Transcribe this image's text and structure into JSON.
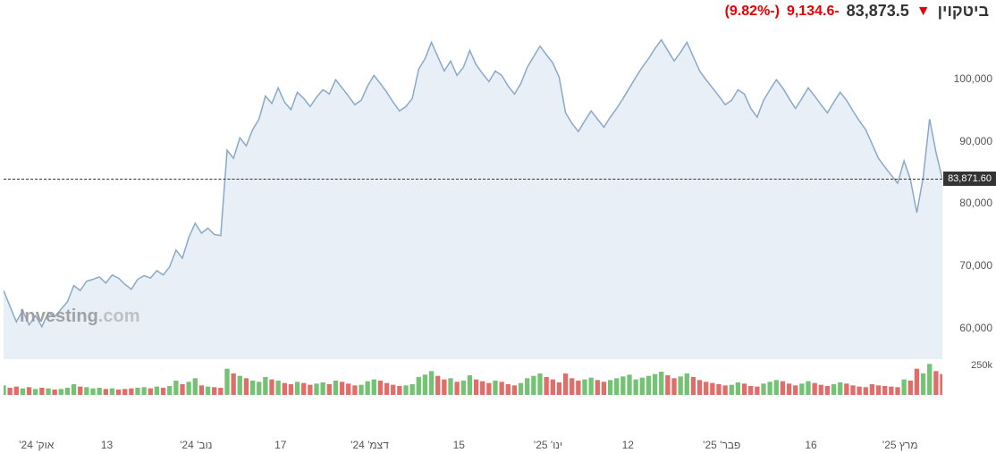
{
  "header": {
    "title": "ביטקוין",
    "price": "83,873.5",
    "change": "-9,134.6",
    "pct": "(-9.82%)",
    "change_color": "#e60000"
  },
  "watermark": {
    "brand": "Investing",
    "domain": ".com"
  },
  "price_chart": {
    "type": "area",
    "line_color": "#8aa9c9",
    "fill_color": "#e8eff6",
    "line_width": 1.5,
    "ylim": [
      55000,
      108000
    ],
    "yticks": [
      60000,
      70000,
      80000,
      90000,
      100000
    ],
    "ytick_labels": [
      "60,000",
      "70,000",
      "80,000",
      "90,000",
      "100,000"
    ],
    "current_value": 83871.6,
    "current_label": "83,871.60",
    "values": [
      66000,
      63500,
      61000,
      62800,
      60500,
      62000,
      60200,
      62500,
      61800,
      63000,
      64200,
      66800,
      66000,
      67500,
      67800,
      68200,
      67200,
      68500,
      68000,
      67000,
      66200,
      67800,
      68400,
      68000,
      69200,
      68500,
      69800,
      72500,
      71200,
      74500,
      76800,
      75200,
      76000,
      75000,
      74800,
      88500,
      87200,
      90500,
      89200,
      91800,
      93500,
      97200,
      96000,
      98500,
      96200,
      95000,
      97800,
      96800,
      95500,
      97000,
      98200,
      97500,
      99800,
      98500,
      97200,
      95800,
      96500,
      98800,
      100500,
      99200,
      97800,
      96200,
      94800,
      95500,
      96800,
      101500,
      103200,
      105800,
      103500,
      101200,
      102800,
      100500,
      101800,
      104500,
      102200,
      100800,
      99500,
      101200,
      100500,
      98800,
      97500,
      99200,
      101800,
      103500,
      105200,
      103800,
      102500,
      100200,
      94500,
      92800,
      91500,
      93200,
      94800,
      93500,
      92200,
      93800,
      95200,
      96800,
      98500,
      100200,
      101800,
      103200,
      104800,
      106200,
      104500,
      102800,
      104200,
      105800,
      103500,
      101200,
      99800,
      98500,
      97200,
      95800,
      96500,
      98200,
      97500,
      95200,
      93800,
      96500,
      98200,
      99800,
      98500,
      96800,
      95200,
      96800,
      98500,
      97200,
      95800,
      94500,
      96200,
      97800,
      96500,
      94800,
      93200,
      91800,
      89500,
      87200,
      85800,
      84500,
      83200,
      86800,
      83800,
      78500,
      84200,
      93500,
      88200,
      83871
    ]
  },
  "volume_chart": {
    "type": "bar",
    "ymax": 300,
    "ytick": 250,
    "ytick_label": "250k",
    "up_color": "#5cb85c",
    "down_color": "#d9534f",
    "values": [
      80,
      60,
      70,
      55,
      65,
      50,
      60,
      55,
      45,
      50,
      60,
      90,
      70,
      65,
      55,
      60,
      50,
      55,
      45,
      50,
      55,
      60,
      65,
      55,
      70,
      60,
      75,
      120,
      90,
      110,
      140,
      80,
      70,
      65,
      60,
      220,
      180,
      160,
      140,
      120,
      110,
      150,
      130,
      120,
      100,
      90,
      110,
      100,
      85,
      95,
      105,
      90,
      120,
      110,
      95,
      80,
      85,
      115,
      130,
      120,
      100,
      85,
      75,
      80,
      90,
      150,
      170,
      200,
      160,
      130,
      140,
      110,
      120,
      165,
      130,
      115,
      100,
      120,
      110,
      90,
      80,
      100,
      140,
      160,
      180,
      150,
      130,
      105,
      180,
      140,
      120,
      130,
      145,
      125,
      110,
      125,
      140,
      155,
      170,
      130,
      145,
      160,
      175,
      195,
      165,
      140,
      155,
      180,
      150,
      125,
      110,
      100,
      90,
      80,
      85,
      105,
      95,
      75,
      70,
      95,
      110,
      125,
      115,
      95,
      80,
      95,
      115,
      100,
      85,
      75,
      90,
      105,
      95,
      80,
      70,
      65,
      90,
      80,
      75,
      70,
      65,
      130,
      120,
      220,
      180,
      260,
      200,
      175
    ]
  },
  "x_axis": {
    "labels": [
      {
        "pos": 0.035,
        "text": "אוק' 24'"
      },
      {
        "pos": 0.11,
        "text": "13"
      },
      {
        "pos": 0.205,
        "text": "נוב' 24'"
      },
      {
        "pos": 0.295,
        "text": "17"
      },
      {
        "pos": 0.39,
        "text": "דצמ' 24'"
      },
      {
        "pos": 0.485,
        "text": "15"
      },
      {
        "pos": 0.58,
        "text": "ינו' 25'"
      },
      {
        "pos": 0.665,
        "text": "12"
      },
      {
        "pos": 0.765,
        "text": "פבר' 25'"
      },
      {
        "pos": 0.86,
        "text": "16"
      },
      {
        "pos": 0.955,
        "text": "מרץ 25'"
      }
    ]
  }
}
